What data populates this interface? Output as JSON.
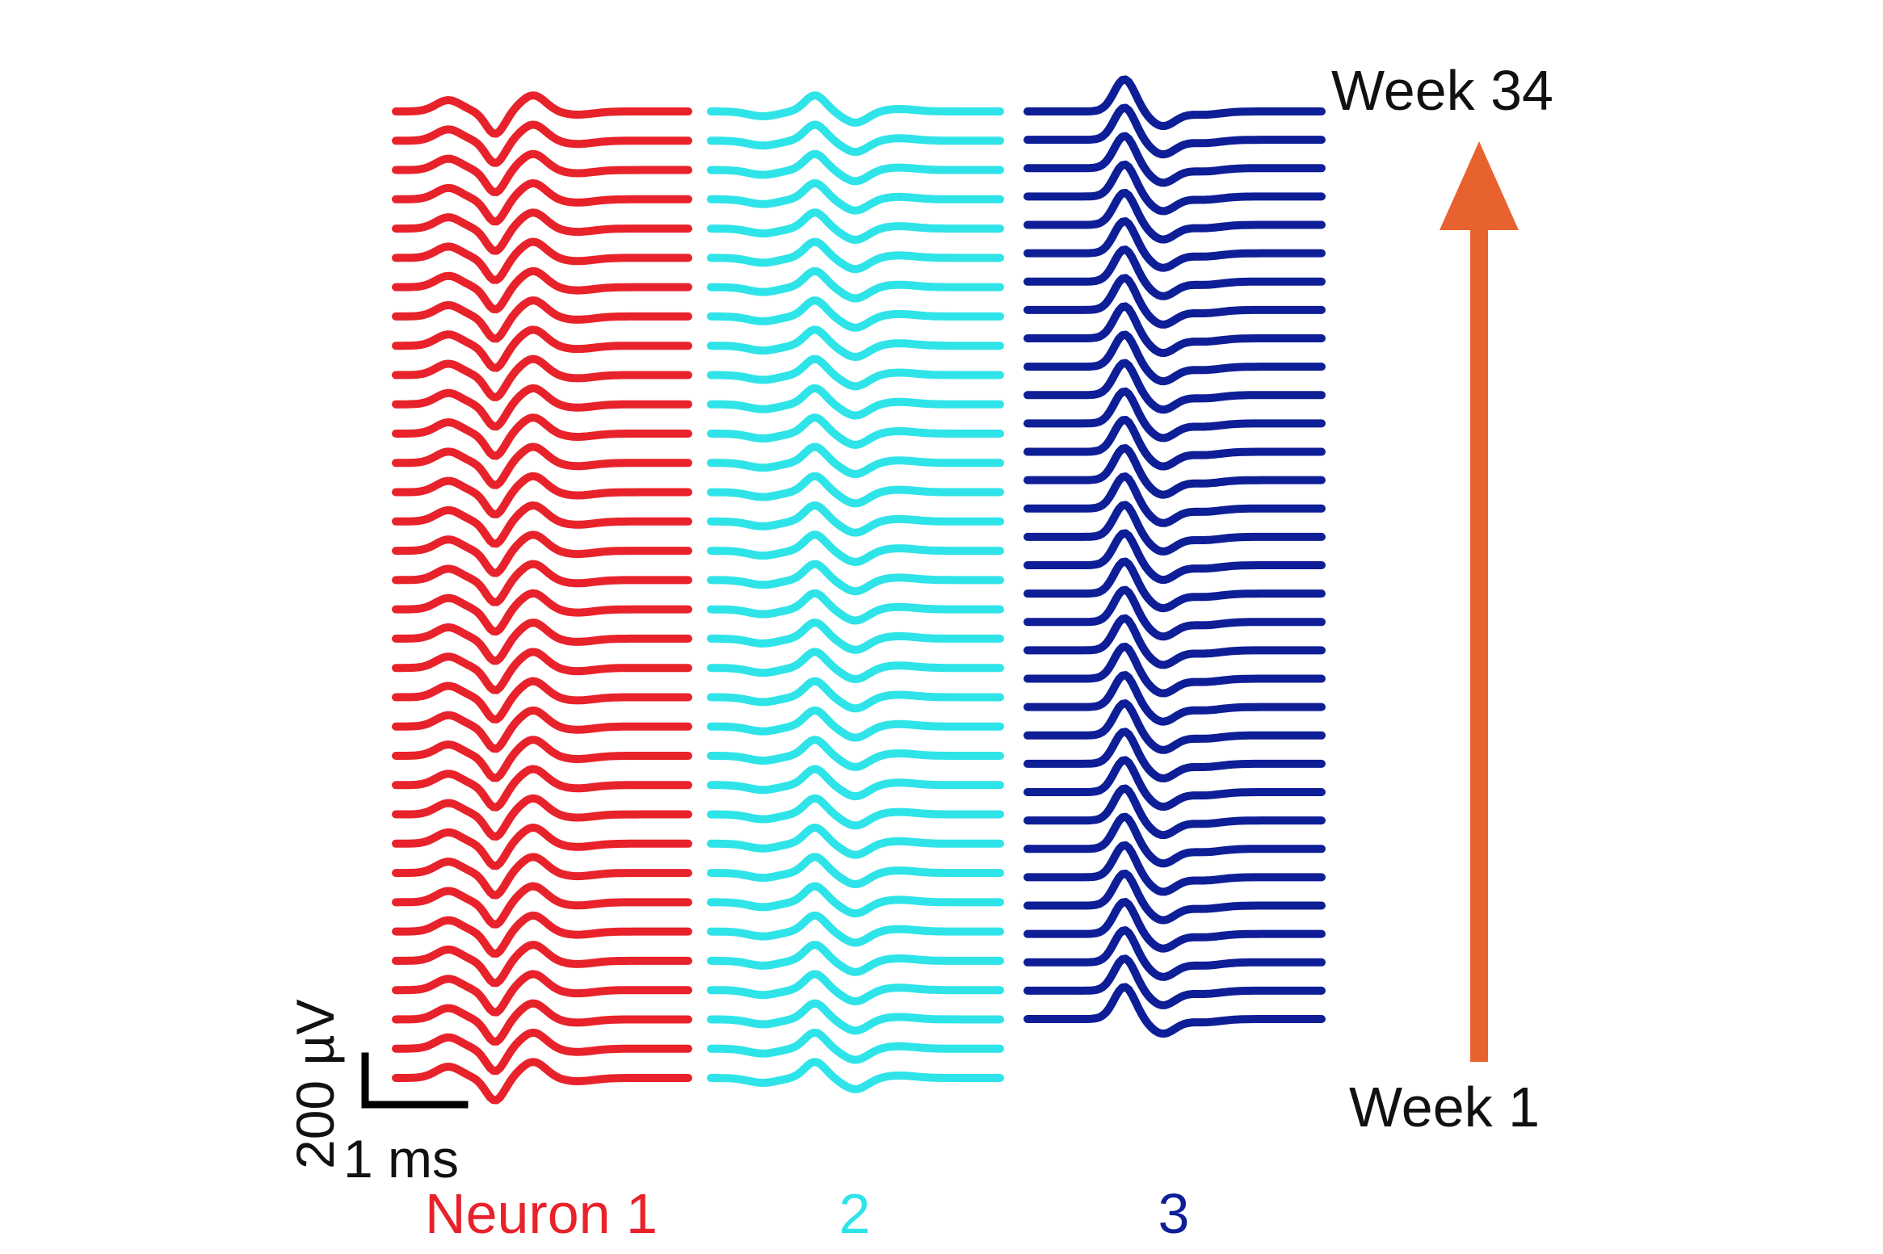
{
  "figure": {
    "top_label": "Week 34",
    "bottom_label": "Week 1",
    "arrow_color": "#E8622F",
    "scale_bar": {
      "vertical_label": "200 µV",
      "horizontal_label": "1 ms",
      "color": "#000000"
    },
    "neurons": [
      {
        "label": "Neuron 1",
        "color": "#E8222A",
        "trace_count": 34
      },
      {
        "label": "2",
        "color": "#2FE4E8",
        "trace_count": 34
      },
      {
        "label": "3",
        "color": "#0E1E96",
        "trace_count": 33
      }
    ]
  }
}
